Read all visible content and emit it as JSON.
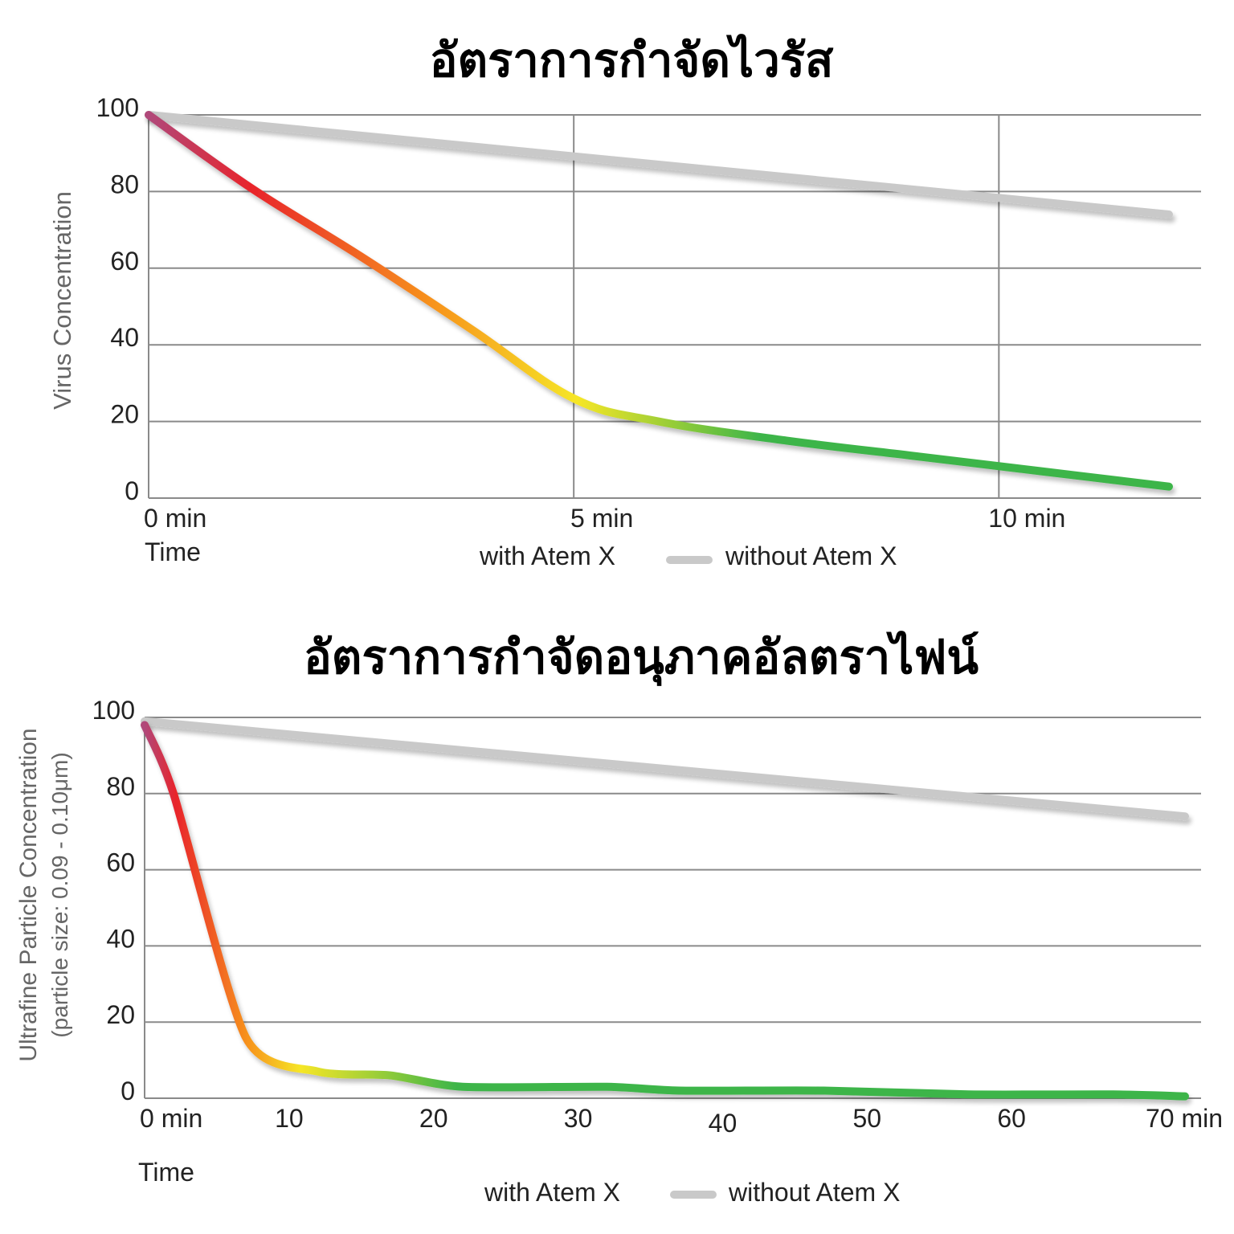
{
  "chart_data": [
    {
      "type": "line",
      "title": "อัตราการกำจัดไวรัส",
      "xlabel": "Time",
      "ylabel": "Virus Concentration",
      "ylabel_sub": "",
      "x_unit": "min",
      "ylim": [
        0,
        100
      ],
      "xlim": [
        0,
        12
      ],
      "y_ticks": [
        0,
        20,
        40,
        60,
        80,
        100
      ],
      "x_ticks": [
        {
          "value": 0,
          "label": "0 min"
        },
        {
          "value": 5,
          "label": "5 min"
        },
        {
          "value": 10,
          "label": "10 min"
        }
      ],
      "x_gridlines": [
        5,
        10
      ],
      "series": [
        {
          "name": "without Atem X",
          "color": "#c9c9c9",
          "x": [
            0,
            12
          ],
          "y": [
            100,
            74
          ]
        },
        {
          "name": "with Atem X",
          "color_stops": [
            "#b0487a",
            "#e8242b",
            "#f7941d",
            "#f6e627",
            "#3db549",
            "#3db549"
          ],
          "x": [
            0,
            1.2,
            2.5,
            3.8,
            5,
            6,
            7.5,
            9,
            10.5,
            12
          ],
          "y": [
            100,
            81,
            63,
            44,
            26,
            20,
            15,
            11,
            7,
            3
          ]
        }
      ],
      "legend": {
        "position": "bottom-center",
        "entries": [
          "with Atem X",
          "without Atem X"
        ]
      }
    },
    {
      "type": "line",
      "title": "อัตราการกำจัดอนุภาคอัลตราไฟน์",
      "xlabel": "Time",
      "ylabel": "Ultrafine Particle Concentration",
      "ylabel_sub": "(particle size: 0.09 - 0.10μm)",
      "x_unit": "min",
      "ylim": [
        0,
        100
      ],
      "xlim": [
        0,
        72
      ],
      "y_ticks": [
        0,
        20,
        40,
        60,
        80,
        100
      ],
      "x_ticks": [
        {
          "value": 0,
          "label": "0 min"
        },
        {
          "value": 10,
          "label": "10"
        },
        {
          "value": 20,
          "label": "20"
        },
        {
          "value": 30,
          "label": "30"
        },
        {
          "value": 40,
          "label": "40"
        },
        {
          "value": 50,
          "label": "50"
        },
        {
          "value": 60,
          "label": "60"
        },
        {
          "value": 70,
          "label": "70 min"
        }
      ],
      "x_gridlines": [],
      "series": [
        {
          "name": "without Atem X",
          "color": "#c9c9c9",
          "x": [
            0,
            72
          ],
          "y": [
            99,
            74
          ]
        },
        {
          "name": "with Atem X",
          "color_stops": [
            "#b0487a",
            "#e8242b",
            "#f7941d",
            "#f6e627",
            "#3db549",
            "#3db549"
          ],
          "x": [
            0,
            2,
            7,
            12,
            17,
            22,
            32,
            37,
            47,
            57,
            67,
            72
          ],
          "y": [
            98,
            80,
            16,
            7,
            6,
            3,
            3,
            2,
            2,
            1,
            1,
            0.5
          ]
        }
      ],
      "legend": {
        "position": "bottom-center",
        "entries": [
          "with Atem X",
          "without Atem X"
        ]
      }
    }
  ]
}
